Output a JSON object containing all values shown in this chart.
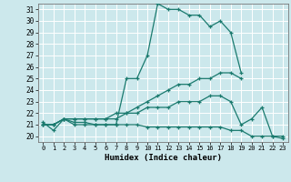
{
  "xlabel": "Humidex (Indice chaleur)",
  "bg_color": "#cce8ec",
  "grid_color": "#b0d8dc",
  "line_color": "#1a7a6e",
  "xlim": [
    -0.5,
    23.5
  ],
  "ylim": [
    19.5,
    31.5
  ],
  "xticks": [
    0,
    1,
    2,
    3,
    4,
    5,
    6,
    7,
    8,
    9,
    10,
    11,
    12,
    13,
    14,
    15,
    16,
    17,
    18,
    19,
    20,
    21,
    22,
    23
  ],
  "yticks": [
    20,
    21,
    22,
    23,
    24,
    25,
    26,
    27,
    28,
    29,
    30,
    31
  ],
  "lines": [
    {
      "x": [
        0,
        1,
        2,
        3,
        4,
        5,
        6,
        7,
        8,
        9,
        10,
        11,
        12,
        13,
        14,
        15,
        16,
        17,
        18,
        19
      ],
      "y": [
        21.0,
        21.0,
        21.5,
        21.0,
        21.0,
        21.0,
        21.0,
        21.0,
        25.0,
        25.0,
        27.0,
        31.5,
        31.0,
        31.0,
        30.5,
        30.5,
        29.5,
        30.0,
        29.0,
        25.5
      ]
    },
    {
      "x": [
        0,
        1,
        2,
        3,
        4,
        5,
        6,
        7,
        8,
        9,
        10,
        11,
        12,
        13,
        14,
        15,
        16,
        17,
        18,
        19
      ],
      "y": [
        21.0,
        21.0,
        21.5,
        21.5,
        21.5,
        21.5,
        21.5,
        21.5,
        22.0,
        22.5,
        23.0,
        23.5,
        24.0,
        24.5,
        24.5,
        25.0,
        25.0,
        25.5,
        25.5,
        25.0
      ]
    },
    {
      "x": [
        0,
        1,
        2,
        3,
        4,
        5,
        6,
        7,
        8,
        9,
        10,
        11,
        12,
        13,
        14,
        15,
        16,
        17,
        18,
        19,
        20,
        21,
        22,
        23
      ],
      "y": [
        21.0,
        21.0,
        21.5,
        21.5,
        21.5,
        21.5,
        21.5,
        22.0,
        22.0,
        22.0,
        22.5,
        22.5,
        22.5,
        23.0,
        23.0,
        23.0,
        23.5,
        23.5,
        23.0,
        21.0,
        21.5,
        22.5,
        20.0,
        19.8
      ]
    },
    {
      "x": [
        0,
        1,
        2,
        3,
        4,
        5,
        6,
        7,
        8,
        9,
        10,
        11,
        12,
        13,
        14,
        15,
        16,
        17,
        18,
        19,
        20,
        21,
        22,
        23
      ],
      "y": [
        21.2,
        20.5,
        21.5,
        21.2,
        21.2,
        21.0,
        21.0,
        21.0,
        21.0,
        21.0,
        20.8,
        20.8,
        20.8,
        20.8,
        20.8,
        20.8,
        20.8,
        20.8,
        20.5,
        20.5,
        20.0,
        20.0,
        20.0,
        20.0
      ]
    }
  ]
}
